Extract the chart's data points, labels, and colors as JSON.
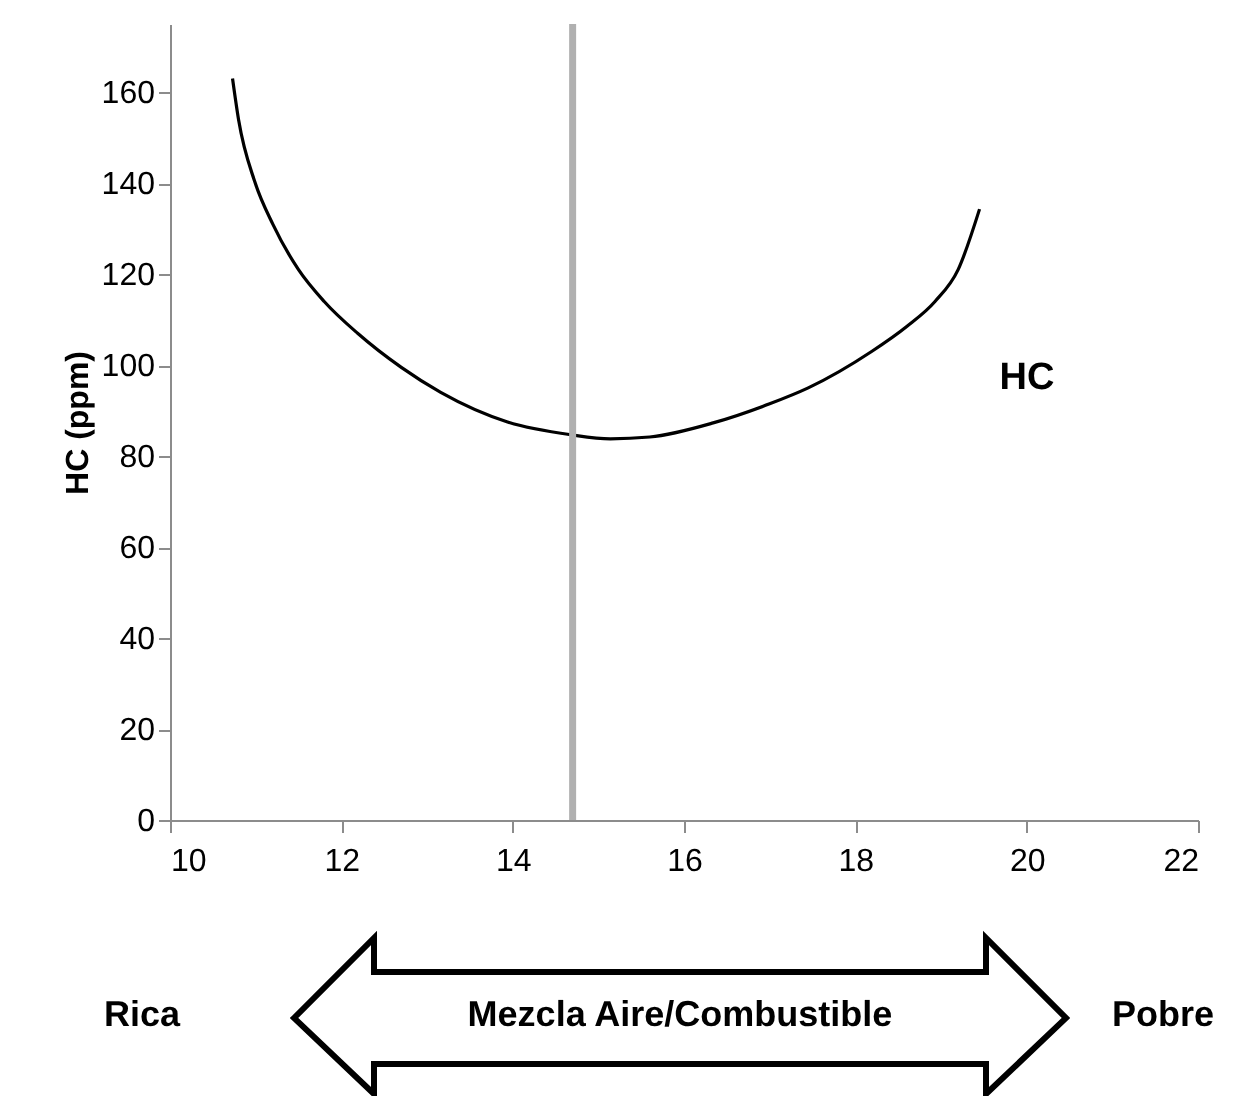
{
  "chart_data": {
    "type": "line",
    "ylabel": "HC (ppm)",
    "series": [
      {
        "name": "HC",
        "color": "#000000",
        "x": [
          10.73,
          10.8,
          10.99,
          11.2,
          11.5,
          11.8,
          12.19,
          12.7,
          13.16,
          13.94,
          14.68,
          15.14,
          15.6,
          16.34,
          17,
          17.45,
          18.19,
          18.6,
          18.93,
          19.2,
          19.45
        ],
        "values": [
          163,
          154,
          140.3,
          131,
          121,
          114,
          107,
          99.5,
          94,
          87.5,
          84.7,
          83.8,
          84.2,
          87.3,
          91.5,
          95,
          103,
          108.5,
          114,
          121,
          134.3
        ]
      }
    ],
    "xlim": [
      10,
      22
    ],
    "xticks": [
      10,
      12,
      14,
      16,
      18,
      20,
      22
    ],
    "ylim": [
      0,
      175
    ],
    "yticks": [
      0,
      20,
      40,
      60,
      80,
      100,
      120,
      140,
      160
    ],
    "ref_lines": [
      {
        "axis": "x",
        "value": 14.7,
        "color": "#b0b0b0"
      }
    ],
    "annotations": [
      "Rica",
      "Mezcla Aire/Combustible",
      "Pobre"
    ],
    "grid": false,
    "legend": false,
    "marker": "none",
    "line_style": "solid"
  }
}
